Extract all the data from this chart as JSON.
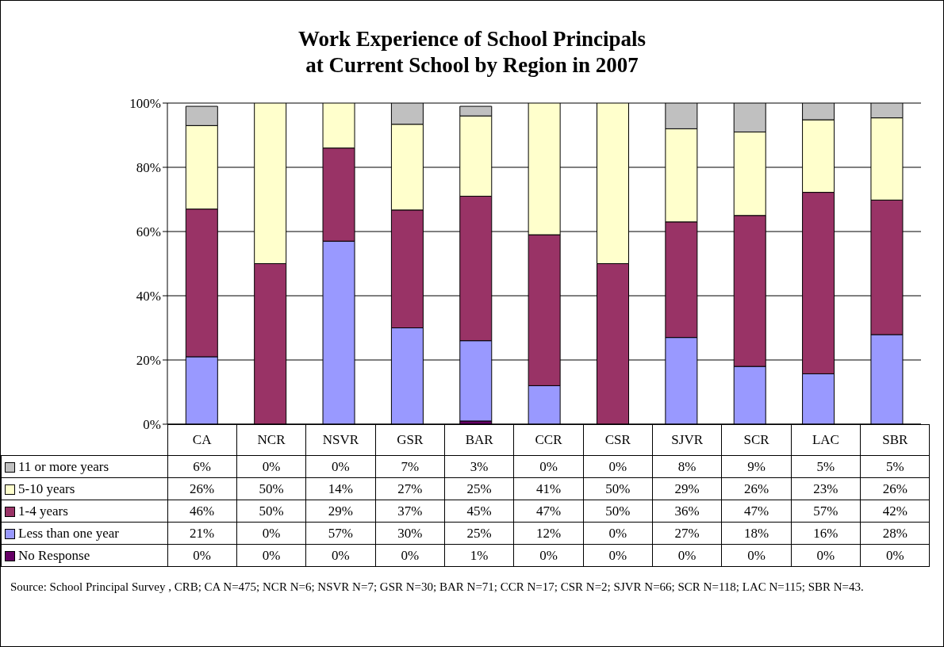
{
  "chart_data": {
    "type": "bar",
    "title": "Work Experience of School Principals\nat Current School by Region in 2007",
    "categories": [
      "CA",
      "NCR",
      "NSVR",
      "GSR",
      "BAR",
      "CCR",
      "CSR",
      "SJVR",
      "SCR",
      "LAC",
      "SBR"
    ],
    "stacked": true,
    "ylim": [
      0,
      100
    ],
    "yticks": [
      {
        "value": 0,
        "label": "0%"
      },
      {
        "value": 20,
        "label": "20%"
      },
      {
        "value": 40,
        "label": "40%"
      },
      {
        "value": 60,
        "label": "60%"
      },
      {
        "value": 80,
        "label": "80%"
      },
      {
        "value": 100,
        "label": "100%"
      }
    ],
    "grid": "y",
    "legend": "bottom",
    "series": [
      {
        "name": "No Response",
        "color": "#660066",
        "values": [
          0,
          0,
          0,
          0,
          1,
          0,
          0,
          0,
          0,
          0,
          0
        ],
        "value_labels": [
          "0%",
          "0%",
          "0%",
          "0%",
          "1%",
          "0%",
          "0%",
          "0%",
          "0%",
          "0%",
          "0%"
        ]
      },
      {
        "name": "Less than one year",
        "color": "#9999ff",
        "values": [
          21,
          0,
          57,
          30,
          25,
          12,
          0,
          27,
          18,
          15.7,
          27.9
        ],
        "value_labels": [
          "21%",
          "0%",
          "57%",
          "30%",
          "25%",
          "12%",
          "0%",
          "27%",
          "18%",
          "16%",
          "28%"
        ]
      },
      {
        "name": "1-4 years",
        "color": "#993366",
        "values": [
          46,
          50,
          29,
          36.7,
          45,
          47,
          50,
          36,
          47,
          56.5,
          41.9
        ],
        "value_labels": [
          "46%",
          "50%",
          "29%",
          "37%",
          "45%",
          "47%",
          "50%",
          "36%",
          "47%",
          "57%",
          "42%"
        ]
      },
      {
        "name": "5-10 years",
        "color": "#ffffcc",
        "values": [
          26,
          50,
          14,
          26.7,
          25,
          41,
          50,
          29,
          26,
          22.6,
          25.6
        ],
        "value_labels": [
          "26%",
          "50%",
          "14%",
          "27%",
          "25%",
          "41%",
          "50%",
          "29%",
          "26%",
          "23%",
          "26%"
        ]
      },
      {
        "name": "11 or more years",
        "color": "#c0c0c0",
        "values": [
          6,
          0,
          0,
          6.7,
          3,
          0,
          0,
          8,
          9,
          5.2,
          4.7
        ],
        "value_labels": [
          "6%",
          "0%",
          "0%",
          "7%",
          "3%",
          "0%",
          "0%",
          "8%",
          "9%",
          "5%",
          "5%"
        ]
      }
    ],
    "annotations": [
      "Source: School Principal Survey , CRB; CA N=475; NCR N=6; NSVR N=7; GSR N=30; BAR N=71; CCR N=17; CSR N=2; SJVR N=66; SCR N=118; LAC N=115; SBR N=43."
    ]
  }
}
